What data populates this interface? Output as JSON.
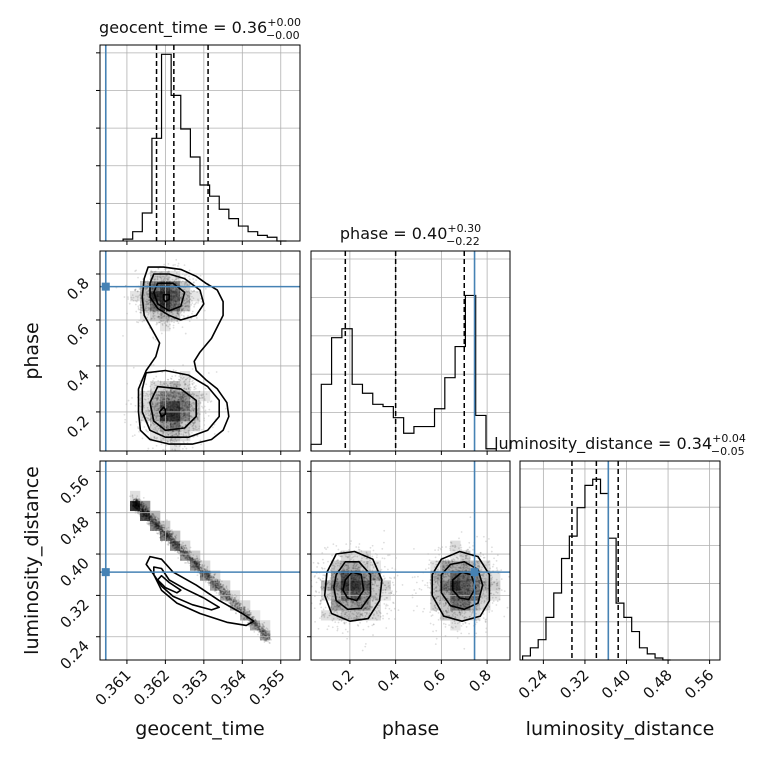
{
  "chart_data": {
    "type": "corner",
    "truth_color": "#4682b4",
    "parameters": [
      {
        "key": "geocent_time",
        "name": "geocent_time",
        "title_main": "geocent_time = 0.36",
        "title_sup": "+0.00",
        "title_sub": "−0.00",
        "range": [
          0.3603,
          0.3655
        ],
        "ticks": [
          0.361,
          0.362,
          0.363,
          0.364,
          0.365
        ],
        "tick_labels": [
          "0.361",
          "0.362",
          "0.363",
          "0.364",
          "0.365"
        ],
        "truth": 0.36045,
        "quantiles": [
          0.36177,
          0.36222,
          0.36311
        ],
        "hist_edges": [
          0.3609,
          0.36115,
          0.3614,
          0.36165,
          0.3619,
          0.36215,
          0.3624,
          0.36265,
          0.3629,
          0.36315,
          0.3634,
          0.36365,
          0.3639,
          0.36415,
          0.3644,
          0.36465,
          0.3649,
          0.36515
        ],
        "hist_counts": [
          0.01,
          0.05,
          0.15,
          0.55,
          1.0,
          0.78,
          0.6,
          0.45,
          0.3,
          0.24,
          0.17,
          0.12,
          0.08,
          0.05,
          0.03,
          0.02,
          0.0
        ],
        "hist_ymax": 1.05
      },
      {
        "key": "phase",
        "name": "phase",
        "title_main": "phase = 0.40",
        "title_sup": "+0.30",
        "title_sub": "−0.22",
        "range": [
          0.03,
          0.9
        ],
        "ticks": [
          0.2,
          0.4,
          0.6,
          0.8
        ],
        "tick_labels": [
          "0.2",
          "0.4",
          "0.6",
          "0.8"
        ],
        "truth": 0.745,
        "quantiles": [
          0.18,
          0.4,
          0.7
        ],
        "hist_edges": [
          0.03,
          0.075,
          0.12,
          0.165,
          0.21,
          0.255,
          0.3,
          0.345,
          0.39,
          0.435,
          0.48,
          0.525,
          0.57,
          0.615,
          0.66,
          0.705,
          0.75,
          0.795,
          0.84
        ],
        "hist_counts": [
          0.03,
          0.3,
          0.51,
          0.55,
          0.3,
          0.26,
          0.21,
          0.2,
          0.15,
          0.08,
          0.11,
          0.11,
          0.19,
          0.33,
          0.47,
          0.7,
          0.16,
          0.01
        ],
        "hist_ymax": 0.9
      },
      {
        "key": "luminosity_distance",
        "name": "luminosity_distance",
        "title_main": "luminosity_distance = 0.34",
        "title_sup": "+0.04",
        "title_sub": "−0.05",
        "range": [
          0.195,
          0.58
        ],
        "ticks": [
          0.24,
          0.32,
          0.4,
          0.48,
          0.56
        ],
        "tick_labels": [
          "0.24",
          "0.32",
          "0.40",
          "0.48",
          "0.56"
        ],
        "truth": 0.365,
        "quantiles": [
          0.295,
          0.342,
          0.384
        ],
        "hist_edges": [
          0.2,
          0.215,
          0.23,
          0.245,
          0.26,
          0.275,
          0.29,
          0.305,
          0.32,
          0.335,
          0.35,
          0.365,
          0.38,
          0.395,
          0.41,
          0.425,
          0.44,
          0.455,
          0.47,
          0.485
        ],
        "hist_counts": [
          0.02,
          0.06,
          0.1,
          0.21,
          0.33,
          0.5,
          0.61,
          0.75,
          0.86,
          0.89,
          0.82,
          0.6,
          0.28,
          0.21,
          0.14,
          0.06,
          0.03,
          0.01,
          0.0
        ],
        "hist_ymax": 0.98
      }
    ],
    "pairs": [
      {
        "x": "geocent_time",
        "y": "phase",
        "contours": [
          [
            [
              0.36155,
              0.83
            ],
            [
              0.36195,
              0.83
            ],
            [
              0.3624,
              0.82
            ],
            [
              0.3628,
              0.79
            ],
            [
              0.36305,
              0.76
            ],
            [
              0.36335,
              0.73
            ],
            [
              0.3635,
              0.68
            ],
            [
              0.3635,
              0.62
            ],
            [
              0.36335,
              0.57
            ],
            [
              0.3632,
              0.52
            ],
            [
              0.3629,
              0.46
            ],
            [
              0.36275,
              0.42
            ],
            [
              0.3628,
              0.38
            ],
            [
              0.36305,
              0.34
            ],
            [
              0.36335,
              0.3
            ],
            [
              0.3636,
              0.24
            ],
            [
              0.36365,
              0.18
            ],
            [
              0.3635,
              0.12
            ],
            [
              0.3632,
              0.08
            ],
            [
              0.3627,
              0.06
            ],
            [
              0.3621,
              0.06
            ],
            [
              0.3616,
              0.08
            ],
            [
              0.36135,
              0.12
            ],
            [
              0.3613,
              0.2
            ],
            [
              0.3613,
              0.3
            ],
            [
              0.3615,
              0.38
            ],
            [
              0.36175,
              0.44
            ],
            [
              0.36185,
              0.5
            ],
            [
              0.36165,
              0.56
            ],
            [
              0.36145,
              0.62
            ],
            [
              0.3614,
              0.7
            ],
            [
              0.36145,
              0.78
            ]
          ],
          [
            [
              0.3617,
              0.8
            ],
            [
              0.3621,
              0.8
            ],
            [
              0.3625,
              0.78
            ],
            [
              0.3629,
              0.73
            ],
            [
              0.363,
              0.67
            ],
            [
              0.3628,
              0.62
            ],
            [
              0.3624,
              0.6
            ],
            [
              0.3621,
              0.62
            ],
            [
              0.3618,
              0.65
            ],
            [
              0.3616,
              0.7
            ],
            [
              0.3616,
              0.76
            ]
          ],
          [
            [
              0.3615,
              0.37
            ],
            [
              0.362,
              0.38
            ],
            [
              0.3626,
              0.36
            ],
            [
              0.3631,
              0.31
            ],
            [
              0.3634,
              0.25
            ],
            [
              0.3634,
              0.18
            ],
            [
              0.3631,
              0.12
            ],
            [
              0.3626,
              0.09
            ],
            [
              0.362,
              0.09
            ],
            [
              0.3616,
              0.12
            ],
            [
              0.3614,
              0.2
            ],
            [
              0.3614,
              0.3
            ]
          ],
          [
            [
              0.3618,
              0.76
            ],
            [
              0.3622,
              0.76
            ],
            [
              0.3625,
              0.72
            ],
            [
              0.3624,
              0.66
            ],
            [
              0.3621,
              0.64
            ],
            [
              0.3618,
              0.67
            ],
            [
              0.3617,
              0.72
            ]
          ],
          [
            [
              0.3618,
              0.31
            ],
            [
              0.3624,
              0.3
            ],
            [
              0.3628,
              0.25
            ],
            [
              0.3628,
              0.18
            ],
            [
              0.3625,
              0.13
            ],
            [
              0.362,
              0.12
            ],
            [
              0.3617,
              0.16
            ],
            [
              0.3616,
              0.24
            ]
          ],
          [
            [
              0.36195,
              0.71
            ],
            [
              0.3621,
              0.71
            ],
            [
              0.3621,
              0.69
            ],
            [
              0.362,
              0.68
            ],
            [
              0.36195,
              0.69
            ]
          ],
          [
            [
              0.36195,
              0.22
            ],
            [
              0.362,
              0.21
            ],
            [
              0.362,
              0.19
            ],
            [
              0.3619,
              0.18
            ],
            [
              0.36185,
              0.2
            ]
          ]
        ]
      },
      {
        "x": "geocent_time",
        "y": "luminosity_distance",
        "contours": [
          [
            [
              0.3616,
              0.395
            ],
            [
              0.3619,
              0.39
            ],
            [
              0.3622,
              0.365
            ],
            [
              0.3628,
              0.34
            ],
            [
              0.3634,
              0.31
            ],
            [
              0.364,
              0.285
            ],
            [
              0.3643,
              0.27
            ],
            [
              0.3641,
              0.262
            ],
            [
              0.3636,
              0.268
            ],
            [
              0.3629,
              0.285
            ],
            [
              0.3623,
              0.305
            ],
            [
              0.3619,
              0.33
            ],
            [
              0.3617,
              0.36
            ],
            [
              0.3615,
              0.38
            ]
          ],
          [
            [
              0.3617,
              0.375
            ],
            [
              0.3619,
              0.372
            ],
            [
              0.3621,
              0.35
            ],
            [
              0.3625,
              0.333
            ],
            [
              0.363,
              0.315
            ],
            [
              0.3634,
              0.297
            ],
            [
              0.3632,
              0.292
            ],
            [
              0.3627,
              0.302
            ],
            [
              0.3622,
              0.318
            ],
            [
              0.3619,
              0.338
            ],
            [
              0.3617,
              0.36
            ]
          ],
          [
            [
              0.3619,
              0.358
            ],
            [
              0.3621,
              0.345
            ],
            [
              0.3624,
              0.33
            ],
            [
              0.3623,
              0.325
            ],
            [
              0.362,
              0.335
            ],
            [
              0.3618,
              0.35
            ]
          ]
        ]
      },
      {
        "x": "phase",
        "y": "luminosity_distance",
        "contours": [
          [
            [
              0.1,
              0.365
            ],
            [
              0.14,
              0.4
            ],
            [
              0.22,
              0.405
            ],
            [
              0.3,
              0.39
            ],
            [
              0.34,
              0.35
            ],
            [
              0.33,
              0.31
            ],
            [
              0.28,
              0.275
            ],
            [
              0.2,
              0.27
            ],
            [
              0.12,
              0.285
            ],
            [
              0.09,
              0.32
            ]
          ],
          [
            [
              0.14,
              0.36
            ],
            [
              0.18,
              0.385
            ],
            [
              0.24,
              0.385
            ],
            [
              0.29,
              0.36
            ],
            [
              0.29,
              0.32
            ],
            [
              0.25,
              0.295
            ],
            [
              0.19,
              0.293
            ],
            [
              0.14,
              0.31
            ],
            [
              0.13,
              0.335
            ]
          ],
          [
            [
              0.18,
              0.35
            ],
            [
              0.21,
              0.365
            ],
            [
              0.25,
              0.36
            ],
            [
              0.26,
              0.33
            ],
            [
              0.23,
              0.31
            ],
            [
              0.19,
              0.315
            ],
            [
              0.17,
              0.33
            ]
          ],
          [
            [
              0.56,
              0.36
            ],
            [
              0.6,
              0.39
            ],
            [
              0.68,
              0.405
            ],
            [
              0.76,
              0.395
            ],
            [
              0.81,
              0.36
            ],
            [
              0.81,
              0.31
            ],
            [
              0.77,
              0.28
            ],
            [
              0.69,
              0.27
            ],
            [
              0.61,
              0.28
            ],
            [
              0.56,
              0.32
            ]
          ],
          [
            [
              0.6,
              0.36
            ],
            [
              0.64,
              0.38
            ],
            [
              0.7,
              0.385
            ],
            [
              0.76,
              0.37
            ],
            [
              0.78,
              0.34
            ],
            [
              0.76,
              0.305
            ],
            [
              0.7,
              0.293
            ],
            [
              0.64,
              0.3
            ],
            [
              0.6,
              0.325
            ]
          ],
          [
            [
              0.65,
              0.35
            ],
            [
              0.69,
              0.365
            ],
            [
              0.73,
              0.36
            ],
            [
              0.75,
              0.335
            ],
            [
              0.72,
              0.312
            ],
            [
              0.68,
              0.315
            ],
            [
              0.65,
              0.33
            ]
          ]
        ]
      }
    ]
  }
}
